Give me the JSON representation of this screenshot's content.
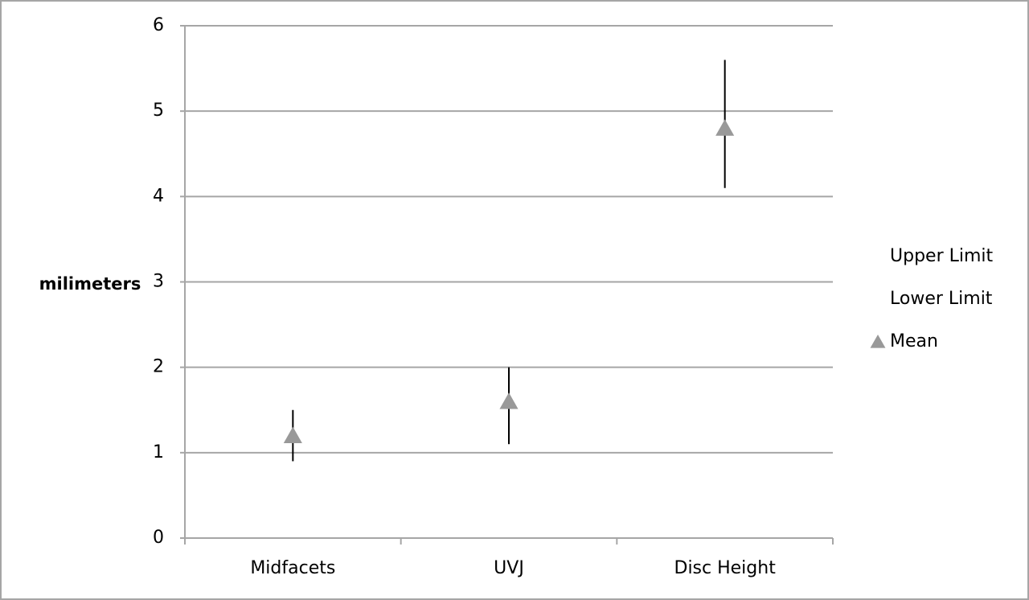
{
  "chart_data": {
    "type": "stock",
    "y_label": "milimeters",
    "categories": [
      "Midfacets",
      "UVJ",
      "Disc Height"
    ],
    "series": [
      {
        "name": "Upper Limit",
        "color": "#000000",
        "values": [
          1.5,
          2.0,
          5.6
        ]
      },
      {
        "name": "Lower Limit",
        "color": "#000000",
        "values": [
          0.9,
          1.1,
          4.1
        ]
      },
      {
        "name": "Mean",
        "color": "#999999",
        "marker": "triangle",
        "values": [
          1.2,
          1.6,
          4.8
        ]
      }
    ],
    "ylim": [
      0,
      6
    ],
    "yticks": [
      0,
      1,
      2,
      3,
      4,
      5,
      6
    ],
    "grid": true,
    "legend": "right"
  }
}
